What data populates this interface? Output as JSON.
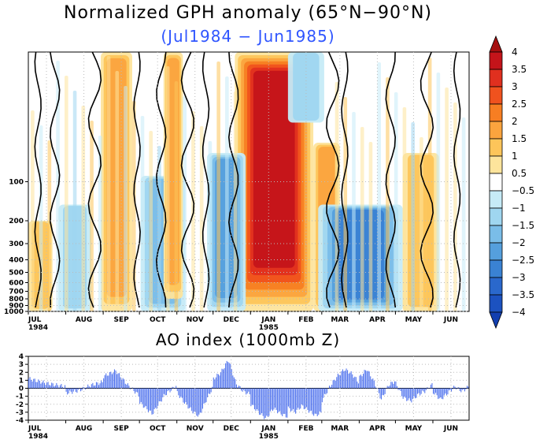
{
  "titles": {
    "main": "Normalized GPH anomaly (65°N−90°N)",
    "subtitle": "(Jul1984 − Jun1985)",
    "ao": "AO index (1000mb Z)"
  },
  "colors": {
    "title_sub": "#2f55ff",
    "ao_bar": "#5577ee",
    "contour_line": "#000000"
  },
  "chart_data": [
    {
      "type": "heatmap",
      "title": "Normalized GPH anomaly (65°N−90°N)",
      "subtitle": "(Jul1984 − Jun1985)",
      "xlabel": "",
      "ylabel": "",
      "x_ticks": [
        "JUL",
        "AUG",
        "SEP",
        "OCT",
        "NOV",
        "DEC",
        "JAN",
        "FEB",
        "MAR",
        "APR",
        "MAY",
        "JUN"
      ],
      "x_year_labels": [
        {
          "month": "JUL",
          "year": "1984"
        },
        {
          "month": "JAN",
          "year": "1985"
        }
      ],
      "y_axis": {
        "scale": "log",
        "reversed": true,
        "unit": "mb",
        "ticks": [
          1000,
          900,
          800,
          700,
          600,
          500,
          400,
          300,
          200,
          100
        ],
        "ylim": [
          1000,
          10
        ]
      },
      "colorbar": {
        "levels": [
          4,
          3.5,
          3,
          2.5,
          2,
          1.5,
          1,
          0.5,
          -0.5,
          -1,
          -1.5,
          -2,
          -2.5,
          -3,
          -3.5,
          -4
        ],
        "colors": [
          "#a50f0f",
          "#c4141a",
          "#e0301f",
          "#f0521e",
          "#f77e22",
          "#fba43e",
          "#fdc55a",
          "#fde49c",
          "#ffffff",
          "#c6ebf7",
          "#9fd6f0",
          "#7abde8",
          "#559fdd",
          "#3a82d3",
          "#2a68cc",
          "#1c52c0",
          "#123fb0"
        ],
        "extend": "both"
      },
      "anomaly_events": [
        {
          "start_day": 171,
          "end_day": 236,
          "p_top": 10,
          "p_bottom": 1000,
          "peak": 3.5,
          "label": "strong positive, Jan–Feb 1985"
        },
        {
          "start_day": 236,
          "end_day": 258,
          "p_top": 50,
          "p_bottom": 1000,
          "peak": 1.5,
          "label": "positive"
        },
        {
          "start_day": 240,
          "end_day": 310,
          "p_top": 150,
          "p_bottom": 1000,
          "peak": -2.5,
          "label": "negative, Feb–Apr 1985"
        },
        {
          "start_day": 148,
          "end_day": 180,
          "p_top": 60,
          "p_bottom": 1000,
          "peak": -2.0,
          "label": "negative, Dec 1984"
        },
        {
          "start_day": 93,
          "end_day": 130,
          "p_top": 90,
          "p_bottom": 1000,
          "peak": -1.5,
          "label": "negative, Oct–Nov 1984"
        },
        {
          "start_day": 25,
          "end_day": 52,
          "p_top": 150,
          "p_bottom": 1000,
          "peak": -1.0,
          "label": "negative, Aug 1984"
        },
        {
          "start_day": 60,
          "end_day": 86,
          "p_top": 10,
          "p_bottom": 1000,
          "peak": 1.5,
          "label": "positive, Sep 1984"
        },
        {
          "start_day": 0,
          "end_day": 20,
          "p_top": 200,
          "p_bottom": 1000,
          "peak": 1.0,
          "label": "positive, Jul 1984"
        },
        {
          "start_day": 112,
          "end_day": 128,
          "p_top": 10,
          "p_bottom": 800,
          "peak": 1.5,
          "label": "positive, Nov 1984"
        },
        {
          "start_day": 310,
          "end_day": 340,
          "p_top": 60,
          "p_bottom": 1000,
          "peak": 1.0,
          "label": "positive, May 1985"
        },
        {
          "start_day": 215,
          "end_day": 245,
          "p_top": 10,
          "p_bottom": 35,
          "peak": -1.0,
          "label": "negative upper, Feb 1985"
        }
      ]
    },
    {
      "type": "bar",
      "title": "AO index (1000mb Z)",
      "xlabel": "",
      "ylabel": "",
      "ylim": [
        -4,
        4
      ],
      "y_ticks": [
        4,
        3,
        2,
        1,
        0,
        -1,
        -2,
        -3,
        -4
      ],
      "x_ticks": [
        "JUL",
        "AUG",
        "SEP",
        "OCT",
        "NOV",
        "DEC",
        "JAN",
        "FEB",
        "MAR",
        "APR",
        "MAY",
        "JUN"
      ],
      "x_year_labels": [
        {
          "month": "JUL",
          "year": "1984"
        },
        {
          "month": "JAN",
          "year": "1985"
        }
      ],
      "grid": true,
      "monthly_keypoints": {
        "JUL": [
          1.2,
          0.6,
          0.2
        ],
        "AUG": [
          -0.6,
          -0.3,
          0.4,
          0.8
        ],
        "SEP": [
          1.5,
          2.2,
          0.4,
          -1.0
        ],
        "OCT": [
          -1.8,
          -3.2,
          -0.8,
          0.4
        ],
        "NOV": [
          -0.6,
          -1.8,
          -2.8,
          -3.5,
          -1.5,
          0.3
        ],
        "DEC": [
          1.2,
          2.0,
          3.6,
          0.6,
          -0.4,
          -0.8
        ],
        "JAN": [
          -2.0,
          -3.0,
          -3.8,
          -2.5,
          -3.2,
          -3.6
        ],
        "FEB": [
          -2.5,
          -3.0,
          -2.2,
          -2.8,
          -3.4,
          -3.0
        ],
        "MAR": [
          -1.5,
          0.2,
          1.5,
          2.4,
          1.8,
          0.6
        ],
        "APR": [
          1.4,
          2.4,
          0.8,
          -1.4,
          0.4,
          1.0
        ],
        "MAY": [
          0.6,
          -1.2,
          -1.6,
          -0.8,
          -0.3,
          0.6
        ],
        "JUN": [
          -0.5,
          -1.4,
          -0.6,
          0.2,
          -0.4,
          0.3
        ]
      }
    }
  ]
}
